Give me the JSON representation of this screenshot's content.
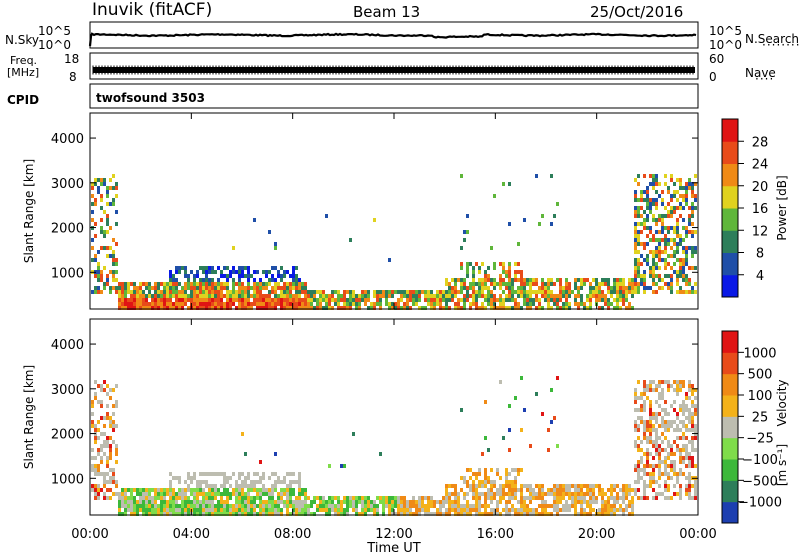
{
  "header": {
    "station": "Inuvik (fitACF)",
    "beam": "Beam 13",
    "date": "25/Oct/2016"
  },
  "strips": {
    "nsky": {
      "label": "N.Sky",
      "left_ticks": [
        "10^5",
        "10^0"
      ],
      "right_ticks": [
        "10^5",
        "10^0"
      ],
      "right_label": "N.Search"
    },
    "freq": {
      "label_top": "Freq.",
      "label_unit": "[MHz]",
      "left_ticks": [
        "18",
        "8"
      ],
      "right_ticks": [
        "60",
        "0"
      ],
      "right_label": "Nave"
    },
    "cpid": {
      "label": "CPID",
      "program": "twofsound 3503"
    }
  },
  "chart_data": [
    {
      "type": "heatmap",
      "ylabel": "Slant Range [km]",
      "y_ticks": [
        "1000",
        "2000",
        "3000",
        "4000"
      ],
      "ylim": [
        180,
        4560
      ],
      "xlim": [
        0,
        24
      ],
      "colorbar": {
        "label": "Power [dB]",
        "ticks": [
          "4",
          "8",
          "12",
          "16",
          "20",
          "24",
          "28"
        ],
        "colors": [
          "#0a19e6",
          "#1f4fa8",
          "#2d7e5a",
          "#5fb63a",
          "#e0d21f",
          "#f08a16",
          "#e84b1a",
          "#e01414"
        ]
      },
      "ionospheric_regions": [
        {
          "t_start": 0.0,
          "t_end": 1.0,
          "range_start": 600,
          "range_end": 3200
        },
        {
          "t_start": 1.0,
          "t_end": 8.5,
          "range_start": 200,
          "range_end": 1200
        },
        {
          "t_start": 8.5,
          "t_end": 14.0,
          "range_start": 200,
          "range_end": 700
        },
        {
          "t_start": 14.0,
          "t_end": 21.5,
          "range_start": 200,
          "range_end": 1200
        },
        {
          "t_start": 21.5,
          "t_end": 24.0,
          "range_start": 600,
          "range_end": 3200
        }
      ]
    },
    {
      "type": "heatmap",
      "ylabel": "Slant Range [km]",
      "y_ticks": [
        "1000",
        "2000",
        "3000",
        "4000"
      ],
      "ylim": [
        180,
        4560
      ],
      "xlim": [
        0,
        24
      ],
      "x_ticks": [
        "00:00",
        "04:00",
        "08:00",
        "12:00",
        "16:00",
        "20:00",
        "00:00"
      ],
      "xlabel": "Time UT",
      "colorbar": {
        "label": "Velocity",
        "unit": "[m s⁻¹]",
        "ticks": [
          "1000",
          "500",
          "100",
          "25",
          "−25",
          "−100",
          "−500",
          "−1000"
        ],
        "colors": [
          "#1d3fb0",
          "#2d7e5a",
          "#3cb83a",
          "#7fdc4a",
          "#bdbdb0",
          "#f4b21a",
          "#f08a16",
          "#e84b1a",
          "#e01414"
        ]
      }
    }
  ]
}
